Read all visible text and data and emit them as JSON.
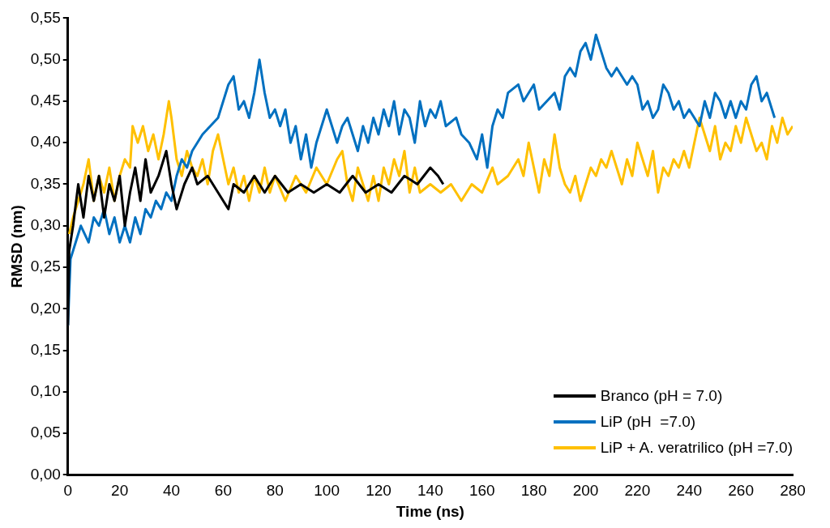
{
  "chart_data": {
    "type": "line",
    "xlabel": "Time (ns)",
    "ylabel": "RMSD (nm)",
    "xlim": [
      0,
      280
    ],
    "xticks": [
      0,
      20,
      40,
      60,
      80,
      100,
      120,
      140,
      160,
      180,
      200,
      220,
      240,
      260,
      280
    ],
    "ylim": [
      0,
      0.55
    ],
    "yticks": [
      {
        "value": 0,
        "label": "0,00"
      },
      {
        "value": 0.05,
        "label": "0,05"
      },
      {
        "value": 0.1,
        "label": "0,10"
      },
      {
        "value": 0.15,
        "label": "0,15"
      },
      {
        "value": 0.2,
        "label": "0,20"
      },
      {
        "value": 0.25,
        "label": "0,25"
      },
      {
        "value": 0.3,
        "label": "0,30"
      },
      {
        "value": 0.35,
        "label": "0,35"
      },
      {
        "value": 0.4,
        "label": "0,40"
      },
      {
        "value": 0.45,
        "label": "0,45"
      },
      {
        "value": 0.5,
        "label": "0,50"
      },
      {
        "value": 0.55,
        "label": "0,55"
      }
    ],
    "grid": false,
    "legend": "bottom right",
    "marker": "none",
    "line_style": "solid",
    "series": [
      {
        "name": "Branco (pH = 7.0)",
        "color": "#000000",
        "x": [
          0,
          0.5,
          2,
          4,
          6,
          8,
          10,
          12,
          14,
          16,
          18,
          20,
          22,
          24,
          26,
          28,
          30,
          32,
          35,
          38,
          40,
          42,
          45,
          48,
          50,
          54,
          58,
          62,
          64,
          68,
          72,
          76,
          80,
          85,
          90,
          95,
          100,
          105,
          110,
          115,
          120,
          125,
          130,
          135,
          140,
          143,
          145
        ],
        "values": [
          0.18,
          0.27,
          0.3,
          0.35,
          0.31,
          0.36,
          0.33,
          0.36,
          0.31,
          0.35,
          0.33,
          0.36,
          0.3,
          0.34,
          0.37,
          0.33,
          0.38,
          0.34,
          0.36,
          0.39,
          0.35,
          0.32,
          0.35,
          0.37,
          0.35,
          0.36,
          0.34,
          0.32,
          0.35,
          0.34,
          0.36,
          0.34,
          0.36,
          0.34,
          0.35,
          0.34,
          0.35,
          0.34,
          0.36,
          0.34,
          0.35,
          0.34,
          0.36,
          0.35,
          0.37,
          0.36,
          0.35
        ]
      },
      {
        "name": "LiP (pH  =7.0)",
        "color": "#0070c0",
        "x": [
          0,
          0.5,
          1,
          3,
          5,
          8,
          10,
          12,
          14,
          16,
          18,
          20,
          22,
          24,
          26,
          28,
          30,
          32,
          34,
          36,
          38,
          40,
          42,
          44,
          46,
          48,
          50,
          52,
          55,
          58,
          60,
          62,
          64,
          66,
          68,
          70,
          72,
          74,
          76,
          78,
          80,
          82,
          84,
          86,
          88,
          90,
          92,
          94,
          96,
          98,
          100,
          102,
          104,
          106,
          108,
          110,
          112,
          114,
          116,
          118,
          120,
          122,
          124,
          126,
          128,
          130,
          132,
          134,
          136,
          138,
          140,
          142,
          144,
          146,
          150,
          152,
          155,
          158,
          160,
          162,
          164,
          166,
          168,
          170,
          174,
          176,
          178,
          180,
          182,
          185,
          188,
          190,
          192,
          194,
          196,
          198,
          200,
          202,
          204,
          206,
          208,
          210,
          212,
          214,
          216,
          218,
          220,
          222,
          224,
          226,
          228,
          230,
          232,
          234,
          236,
          238,
          240,
          242,
          244,
          246,
          248,
          250,
          252,
          254,
          256,
          258,
          260,
          262,
          264,
          266,
          268,
          270,
          272,
          273
        ],
        "values": [
          0.18,
          0.22,
          0.26,
          0.28,
          0.3,
          0.28,
          0.31,
          0.3,
          0.32,
          0.29,
          0.31,
          0.28,
          0.3,
          0.28,
          0.31,
          0.29,
          0.32,
          0.31,
          0.33,
          0.32,
          0.34,
          0.33,
          0.36,
          0.38,
          0.37,
          0.39,
          0.4,
          0.41,
          0.42,
          0.43,
          0.45,
          0.47,
          0.48,
          0.44,
          0.45,
          0.43,
          0.46,
          0.5,
          0.46,
          0.43,
          0.44,
          0.42,
          0.44,
          0.4,
          0.42,
          0.38,
          0.41,
          0.37,
          0.4,
          0.42,
          0.44,
          0.42,
          0.4,
          0.42,
          0.43,
          0.41,
          0.39,
          0.42,
          0.4,
          0.43,
          0.41,
          0.44,
          0.42,
          0.45,
          0.41,
          0.44,
          0.43,
          0.4,
          0.45,
          0.42,
          0.44,
          0.43,
          0.45,
          0.42,
          0.43,
          0.41,
          0.4,
          0.38,
          0.41,
          0.37,
          0.42,
          0.44,
          0.43,
          0.46,
          0.47,
          0.45,
          0.46,
          0.47,
          0.44,
          0.45,
          0.46,
          0.44,
          0.48,
          0.49,
          0.48,
          0.51,
          0.52,
          0.5,
          0.53,
          0.51,
          0.49,
          0.48,
          0.49,
          0.48,
          0.47,
          0.48,
          0.47,
          0.44,
          0.45,
          0.43,
          0.44,
          0.47,
          0.46,
          0.44,
          0.45,
          0.43,
          0.44,
          0.43,
          0.42,
          0.45,
          0.43,
          0.46,
          0.45,
          0.43,
          0.45,
          0.43,
          0.45,
          0.44,
          0.47,
          0.48,
          0.45,
          0.46,
          0.44,
          0.43
        ]
      },
      {
        "name": "LiP + A. veratrilico (pH =7.0)",
        "color": "#ffc000",
        "x": [
          0.5,
          2,
          4,
          6,
          8,
          10,
          12,
          14,
          16,
          18,
          20,
          22,
          24,
          25,
          27,
          29,
          31,
          33,
          35,
          37,
          39,
          40,
          42,
          44,
          46,
          48,
          50,
          52,
          54,
          56,
          58,
          60,
          62,
          64,
          66,
          68,
          70,
          72,
          74,
          76,
          78,
          80,
          84,
          88,
          92,
          96,
          100,
          104,
          106,
          108,
          110,
          112,
          114,
          116,
          118,
          120,
          122,
          124,
          126,
          128,
          130,
          132,
          134,
          136,
          140,
          144,
          148,
          152,
          156,
          160,
          164,
          166,
          170,
          174,
          176,
          178,
          180,
          182,
          184,
          186,
          188,
          190,
          192,
          194,
          196,
          198,
          200,
          202,
          204,
          206,
          208,
          210,
          212,
          214,
          216,
          218,
          220,
          222,
          224,
          226,
          228,
          230,
          232,
          234,
          236,
          238,
          240,
          242,
          244,
          246,
          248,
          250,
          252,
          254,
          256,
          258,
          260,
          262,
          264,
          266,
          268,
          270,
          272,
          274,
          276,
          278,
          280
        ],
        "values": [
          0.29,
          0.31,
          0.33,
          0.35,
          0.38,
          0.33,
          0.36,
          0.34,
          0.37,
          0.33,
          0.36,
          0.38,
          0.37,
          0.42,
          0.4,
          0.42,
          0.39,
          0.41,
          0.38,
          0.41,
          0.45,
          0.43,
          0.38,
          0.36,
          0.39,
          0.37,
          0.36,
          0.38,
          0.35,
          0.39,
          0.41,
          0.38,
          0.35,
          0.37,
          0.34,
          0.36,
          0.33,
          0.36,
          0.34,
          0.37,
          0.34,
          0.36,
          0.33,
          0.36,
          0.34,
          0.37,
          0.35,
          0.38,
          0.39,
          0.35,
          0.33,
          0.37,
          0.35,
          0.33,
          0.36,
          0.33,
          0.37,
          0.35,
          0.38,
          0.36,
          0.39,
          0.34,
          0.37,
          0.34,
          0.35,
          0.34,
          0.35,
          0.33,
          0.35,
          0.34,
          0.37,
          0.35,
          0.36,
          0.38,
          0.36,
          0.4,
          0.37,
          0.34,
          0.38,
          0.36,
          0.41,
          0.37,
          0.35,
          0.34,
          0.36,
          0.33,
          0.35,
          0.37,
          0.36,
          0.38,
          0.37,
          0.39,
          0.37,
          0.35,
          0.38,
          0.36,
          0.4,
          0.38,
          0.36,
          0.39,
          0.34,
          0.37,
          0.36,
          0.38,
          0.37,
          0.39,
          0.37,
          0.4,
          0.43,
          0.41,
          0.39,
          0.42,
          0.38,
          0.4,
          0.39,
          0.42,
          0.4,
          0.43,
          0.41,
          0.39,
          0.4,
          0.38,
          0.42,
          0.4,
          0.43,
          0.41,
          0.42
        ]
      }
    ]
  }
}
